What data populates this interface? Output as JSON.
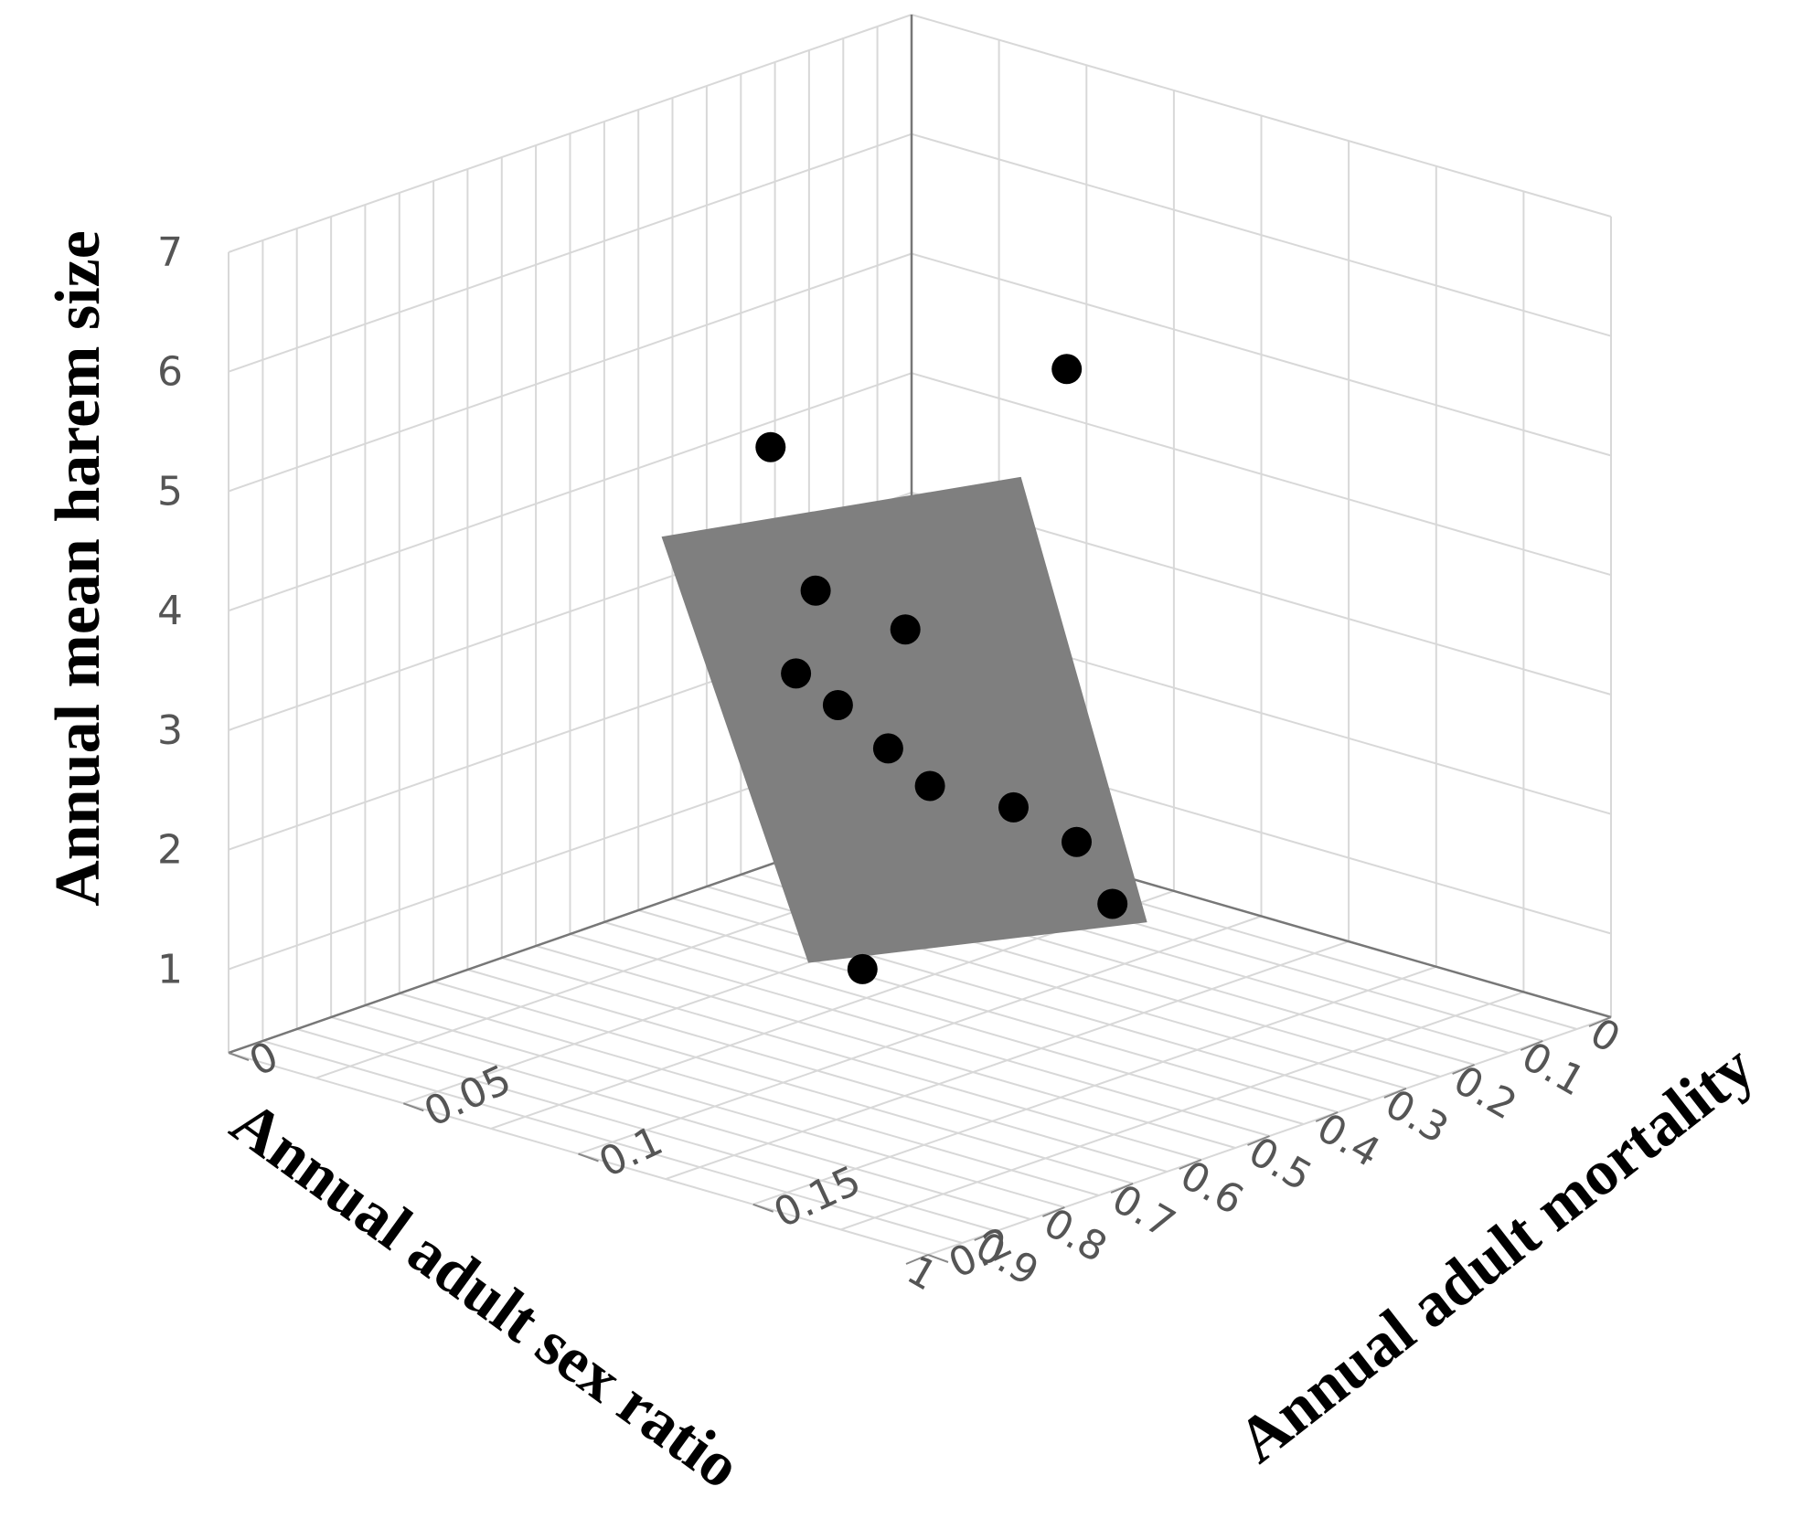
{
  "chart_data": {
    "type": "scatter",
    "subtype": "3d-scatter-with-regression-plane",
    "title": "",
    "xlabel": "Annual adult sex ratio",
    "ylabel": "Annual adult mortality",
    "zlabel": "Annual mean harem size",
    "x_ticks": [
      "0",
      "0.1",
      "0.2",
      "0.3",
      "0.4",
      "0.5",
      "0.6",
      "0.7",
      "0.8",
      "0.9",
      "1"
    ],
    "y_ticks": [
      "0",
      "0.05",
      "0.1",
      "0.15",
      "0.2"
    ],
    "z_ticks": [
      "1",
      "2",
      "3",
      "4",
      "5",
      "6",
      "7"
    ],
    "xlim": [
      0,
      1
    ],
    "ylim": [
      0,
      0.2
    ],
    "zlim": [
      0.3,
      7
    ],
    "grid": true,
    "colors": {
      "points": "#000000",
      "plane": "#7f7f7f",
      "grid": "#d8d8d8"
    },
    "points": [
      {
        "x": 0.08,
        "y": 0.06,
        "z": 4.7
      },
      {
        "x": 0.36,
        "y": 0.03,
        "z": 4.35
      },
      {
        "x": 0.55,
        "y": 0.08,
        "z": 3.95
      },
      {
        "x": 0.47,
        "y": 0.09,
        "z": 3.55
      },
      {
        "x": 0.63,
        "y": 0.09,
        "z": 3.5
      },
      {
        "x": 0.62,
        "y": 0.1,
        "z": 3.3
      },
      {
        "x": 0.7,
        "y": 0.13,
        "z": 3.35
      },
      {
        "x": 0.69,
        "y": 0.14,
        "z": 3.1
      },
      {
        "x": 0.67,
        "y": 0.16,
        "z": 3.05
      },
      {
        "x": 0.68,
        "y": 0.18,
        "z": 2.95
      },
      {
        "x": 0.73,
        "y": 0.2,
        "z": 2.7
      },
      {
        "x": 0.84,
        "y": 0.15,
        "z": 1.95
      }
    ],
    "plane": [
      {
        "x": 0.25,
        "y": 0.08,
        "z": 4.3
      },
      {
        "x": 0.57,
        "y": 0.04,
        "z": 4.1
      },
      {
        "x": 0.97,
        "y": 0.16,
        "z": 2.35
      },
      {
        "x": 0.68,
        "y": 0.2,
        "z": 2.45
      }
    ]
  }
}
